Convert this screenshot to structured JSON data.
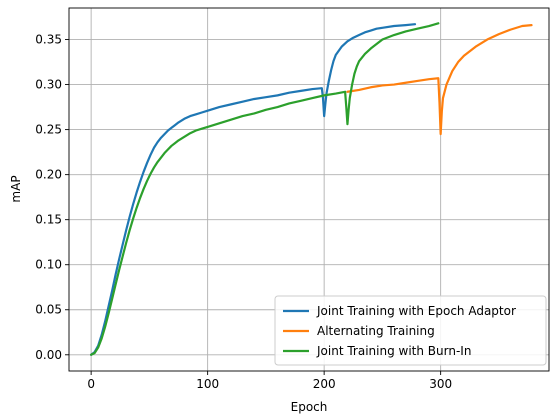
{
  "chart_data": {
    "type": "line",
    "title": "",
    "xlabel": "Epoch",
    "ylabel": "mAP",
    "xlim": [
      -19,
      393
    ],
    "ylim": [
      -0.018,
      0.385
    ],
    "xticks": [
      0,
      100,
      200,
      300
    ],
    "xtick_labels": [
      "0",
      "100",
      "200",
      "300"
    ],
    "yticks": [
      0.0,
      0.05,
      0.1,
      0.15,
      0.2,
      0.25,
      0.3,
      0.35
    ],
    "ytick_labels": [
      "0.00",
      "0.05",
      "0.10",
      "0.15",
      "0.20",
      "0.25",
      "0.30",
      "0.35"
    ],
    "grid": true,
    "legend_position": "lower-right",
    "series": [
      {
        "name": "Joint Training with Epoch Adaptor",
        "color": "#1f77b4",
        "x": [
          0,
          3,
          6,
          9,
          12,
          15,
          18,
          21,
          24,
          27,
          30,
          33,
          36,
          39,
          42,
          45,
          48,
          51,
          54,
          57,
          60,
          63,
          66,
          69,
          72,
          75,
          80,
          85,
          90,
          95,
          100,
          110,
          120,
          130,
          140,
          150,
          160,
          170,
          180,
          190,
          198,
          199,
          200,
          201,
          202,
          204,
          206,
          208,
          210,
          215,
          220,
          225,
          230,
          235,
          240,
          245,
          250,
          260,
          270,
          278
        ],
        "y": [
          0.0,
          0.003,
          0.01,
          0.022,
          0.037,
          0.054,
          0.071,
          0.089,
          0.106,
          0.122,
          0.138,
          0.153,
          0.167,
          0.18,
          0.192,
          0.203,
          0.213,
          0.222,
          0.23,
          0.236,
          0.241,
          0.245,
          0.249,
          0.252,
          0.255,
          0.258,
          0.262,
          0.265,
          0.267,
          0.269,
          0.271,
          0.275,
          0.278,
          0.281,
          0.284,
          0.286,
          0.288,
          0.291,
          0.293,
          0.295,
          0.296,
          0.285,
          0.265,
          0.278,
          0.29,
          0.304,
          0.316,
          0.326,
          0.333,
          0.342,
          0.348,
          0.352,
          0.355,
          0.358,
          0.36,
          0.362,
          0.363,
          0.365,
          0.366,
          0.367
        ]
      },
      {
        "name": "Alternating Training",
        "color": "#ff7f0e",
        "x": [
          220,
          230,
          240,
          250,
          260,
          270,
          280,
          290,
          298,
          299,
          300,
          301,
          302,
          305,
          310,
          315,
          320,
          330,
          340,
          350,
          360,
          370,
          378
        ],
        "y": [
          0.292,
          0.294,
          0.297,
          0.299,
          0.3,
          0.302,
          0.304,
          0.306,
          0.307,
          0.28,
          0.245,
          0.27,
          0.285,
          0.3,
          0.315,
          0.325,
          0.332,
          0.342,
          0.35,
          0.356,
          0.361,
          0.365,
          0.366
        ]
      },
      {
        "name": "Joint Training with Burn-In",
        "color": "#2ca02c",
        "x": [
          0,
          3,
          6,
          9,
          12,
          15,
          18,
          21,
          24,
          27,
          30,
          33,
          36,
          39,
          42,
          45,
          48,
          51,
          54,
          57,
          60,
          63,
          66,
          69,
          72,
          75,
          80,
          85,
          90,
          95,
          100,
          110,
          120,
          130,
          140,
          150,
          160,
          170,
          180,
          190,
          200,
          210,
          218,
          219,
          220,
          221,
          222,
          224,
          226,
          228,
          230,
          235,
          240,
          245,
          250,
          260,
          270,
          280,
          290,
          298
        ],
        "y": [
          0.0,
          0.002,
          0.008,
          0.018,
          0.031,
          0.046,
          0.062,
          0.078,
          0.094,
          0.109,
          0.124,
          0.138,
          0.151,
          0.163,
          0.174,
          0.184,
          0.193,
          0.201,
          0.208,
          0.214,
          0.219,
          0.224,
          0.228,
          0.232,
          0.235,
          0.238,
          0.242,
          0.246,
          0.249,
          0.251,
          0.253,
          0.257,
          0.261,
          0.265,
          0.268,
          0.272,
          0.275,
          0.279,
          0.282,
          0.285,
          0.288,
          0.29,
          0.292,
          0.275,
          0.256,
          0.272,
          0.285,
          0.3,
          0.312,
          0.32,
          0.326,
          0.334,
          0.34,
          0.345,
          0.35,
          0.355,
          0.359,
          0.362,
          0.365,
          0.368
        ]
      }
    ]
  }
}
